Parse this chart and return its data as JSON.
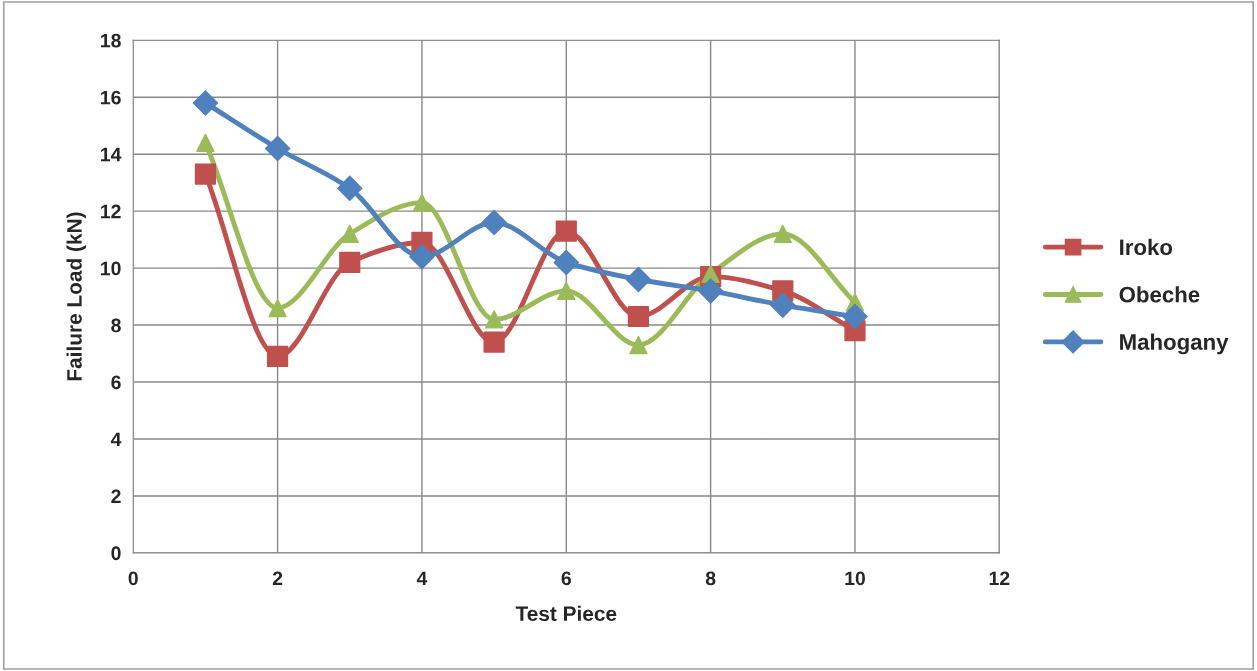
{
  "chart_data": {
    "type": "line",
    "xlabel": "Test Piece",
    "ylabel": "Failure Load (kN)",
    "x": [
      1,
      2,
      3,
      4,
      5,
      6,
      7,
      8,
      9,
      10
    ],
    "xlim": [
      0,
      12
    ],
    "xticks": [
      0,
      2,
      4,
      6,
      8,
      10,
      12
    ],
    "ylim": [
      0,
      18
    ],
    "yticks": [
      0,
      2,
      4,
      6,
      8,
      10,
      12,
      14,
      16,
      18
    ],
    "grid": true,
    "legend": "right",
    "line_style": "solid",
    "series": [
      {
        "name": "Iroko",
        "color": "#c0504d",
        "marker": "square",
        "values": [
          13.3,
          6.9,
          10.2,
          10.9,
          7.4,
          11.3,
          8.3,
          9.7,
          9.2,
          7.8
        ]
      },
      {
        "name": "Obeche",
        "color": "#9bbb59",
        "marker": "triangle",
        "values": [
          14.4,
          8.6,
          11.2,
          12.3,
          8.2,
          9.2,
          7.3,
          9.8,
          11.2,
          8.8
        ]
      },
      {
        "name": "Mahogany",
        "color": "#4f81bd",
        "marker": "diamond",
        "values": [
          15.8,
          14.2,
          12.8,
          10.4,
          11.6,
          10.2,
          9.6,
          9.2,
          8.7,
          8.3
        ]
      }
    ]
  }
}
